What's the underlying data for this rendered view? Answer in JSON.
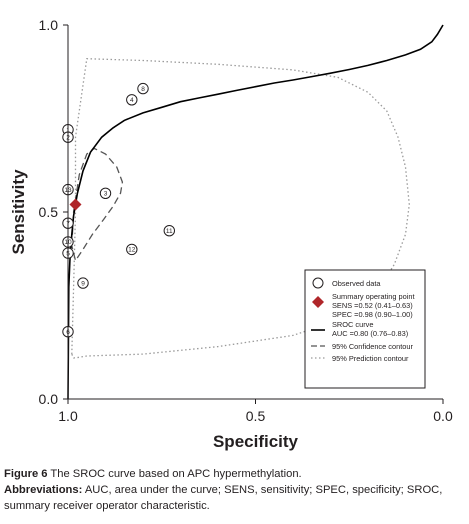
{
  "chart_data": {
    "type": "scatter",
    "xlabel": "Specificity",
    "ylabel": "Sensitivity",
    "x_reversed": true,
    "xlim": [
      1.0,
      0.0
    ],
    "ylim": [
      0.0,
      1.0
    ],
    "x_ticks": [
      "1.0",
      "0.5",
      "0.0"
    ],
    "y_ticks": [
      "0.0",
      "0.5",
      "1.0"
    ],
    "grid": false,
    "legend_position": "bottom-right",
    "observed_data": [
      {
        "label": "1",
        "specificity": 1.0,
        "sensitivity": 0.72
      },
      {
        "label": "2",
        "specificity": 1.0,
        "sensitivity": 0.7
      },
      {
        "label": "13",
        "specificity": 1.0,
        "sensitivity": 0.56
      },
      {
        "label": "3",
        "specificity": 0.9,
        "sensitivity": 0.55
      },
      {
        "label": "7",
        "specificity": 1.0,
        "sensitivity": 0.47
      },
      {
        "label": "10",
        "specificity": 1.0,
        "sensitivity": 0.42
      },
      {
        "label": "5",
        "specificity": 1.0,
        "sensitivity": 0.39
      },
      {
        "label": "9",
        "specificity": 0.96,
        "sensitivity": 0.31
      },
      {
        "label": "6",
        "specificity": 1.0,
        "sensitivity": 0.18
      },
      {
        "label": "4",
        "specificity": 0.83,
        "sensitivity": 0.8
      },
      {
        "label": "8",
        "specificity": 0.8,
        "sensitivity": 0.83
      },
      {
        "label": "12",
        "specificity": 0.83,
        "sensitivity": 0.4
      },
      {
        "label": "11",
        "specificity": 0.73,
        "sensitivity": 0.45
      }
    ],
    "summary_point": {
      "specificity": 0.98,
      "sensitivity": 0.52
    },
    "sroc_curve": {
      "specificity": [
        1.0,
        0.998,
        0.995,
        0.99,
        0.985,
        0.975,
        0.96,
        0.94,
        0.91,
        0.88,
        0.85,
        0.8,
        0.75,
        0.7,
        0.65,
        0.6,
        0.55,
        0.5,
        0.45,
        0.4,
        0.35,
        0.3,
        0.25,
        0.2,
        0.15,
        0.1,
        0.06,
        0.03,
        0.015,
        0.0
      ],
      "sensitivity": [
        0.0,
        0.3,
        0.37,
        0.44,
        0.49,
        0.55,
        0.61,
        0.66,
        0.7,
        0.725,
        0.745,
        0.765,
        0.78,
        0.795,
        0.805,
        0.815,
        0.825,
        0.835,
        0.845,
        0.853,
        0.862,
        0.871,
        0.881,
        0.892,
        0.905,
        0.92,
        0.935,
        0.955,
        0.975,
        1.0
      ]
    },
    "confidence_contour": {
      "specificity": [
        0.99,
        0.985,
        0.97,
        0.95,
        0.93,
        0.9,
        0.87,
        0.855,
        0.86,
        0.88,
        0.905,
        0.935,
        0.96,
        0.98,
        0.99
      ],
      "sensitivity": [
        0.41,
        0.5,
        0.6,
        0.655,
        0.67,
        0.655,
        0.62,
        0.58,
        0.55,
        0.515,
        0.48,
        0.44,
        0.4,
        0.37,
        0.41
      ]
    },
    "prediction_contour": {
      "specificity": [
        0.99,
        0.985,
        0.98,
        0.98,
        0.95,
        0.8,
        0.6,
        0.4,
        0.28,
        0.2,
        0.15,
        0.12,
        0.1,
        0.09,
        0.1,
        0.13,
        0.18,
        0.25,
        0.4,
        0.6,
        0.8,
        0.95,
        0.98,
        0.985,
        0.99
      ],
      "sensitivity": [
        0.12,
        0.3,
        0.5,
        0.7,
        0.91,
        0.905,
        0.895,
        0.88,
        0.86,
        0.82,
        0.77,
        0.7,
        0.62,
        0.52,
        0.44,
        0.36,
        0.28,
        0.22,
        0.17,
        0.14,
        0.12,
        0.115,
        0.11,
        0.11,
        0.12
      ]
    },
    "legend": {
      "observed": "Observed data",
      "summary_title": "Summary operating point",
      "summary_sens": "SENS =0.52 (0.41–0.63)",
      "summary_spec": "SPEC =0.98 (0.90–1.00)",
      "sroc_title": "SROC curve",
      "sroc_auc": "AUC =0.80 (0.76–0.83)",
      "confidence": "95% Confidence contour",
      "prediction": "95% Prediction contour"
    },
    "colors": {
      "sroc": "#000000",
      "confidence": "#555555",
      "prediction": "#9a9a9a",
      "summary_point": "#b0262a",
      "axis": "#231f20"
    }
  },
  "caption": {
    "figure_label": "Figure 6",
    "figure_text": "The SROC curve based on APC hypermethylation.",
    "abbrev_label": "Abbreviations:",
    "abbrev_text": "AUC, area under the curve; SENS, sensitivity; SPEC, specificity; SROC, summary receiver operator characteristic."
  }
}
